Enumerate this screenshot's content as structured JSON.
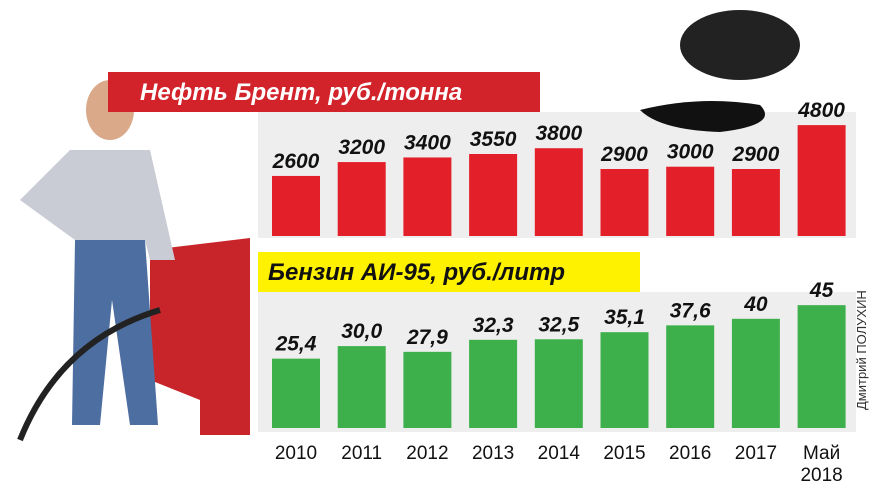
{
  "chart_data": [
    {
      "type": "bar",
      "title": "Нефть Брент, руб./тонна",
      "color": "#e3202a",
      "values": [
        2600,
        3200,
        3400,
        3550,
        3800,
        2900,
        3000,
        2900,
        4800
      ]
    },
    {
      "type": "bar",
      "title": "Бензин АИ-95, руб./литр",
      "color": "#3db04b",
      "categories": [
        "2010",
        "2011",
        "2012",
        "2013",
        "2014",
        "2015",
        "2016",
        "2017",
        "Май 2018"
      ],
      "values": [
        25.4,
        30.0,
        27.9,
        32.3,
        32.5,
        35.1,
        37.6,
        40,
        45
      ],
      "value_labels": [
        "25,4",
        "30,0",
        "27,9",
        "32,3",
        "32,5",
        "35,1",
        "37,6",
        "40",
        "45"
      ]
    }
  ],
  "credit": "Дмитрий ПОЛУХИН"
}
